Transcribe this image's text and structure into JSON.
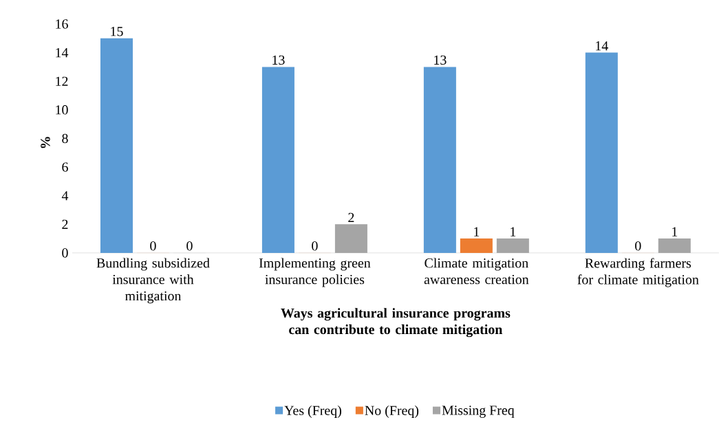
{
  "chart_data": {
    "type": "bar",
    "xlabel": "Ways agricultural insurance programs can contribute to climate mitigation",
    "ylabel": "%",
    "categories": [
      "Bundling subsidized insurance with mitigation",
      "Implementing green insurance policies",
      "Climate mitigation awareness creation",
      "Rewarding farmers for climate mitigation"
    ],
    "series": [
      {
        "name": "Yes (Freq)",
        "color": "#5b9bd5",
        "values": [
          15,
          13,
          13,
          14
        ]
      },
      {
        "name": "No (Freq)",
        "color": "#ed7d31",
        "values": [
          0,
          0,
          1,
          0
        ]
      },
      {
        "name": "Missing Freq",
        "color": "#a5a5a5",
        "values": [
          0,
          2,
          1,
          1
        ]
      }
    ],
    "ylim": [
      0,
      16
    ],
    "yticks": [
      0,
      2,
      4,
      6,
      8,
      10,
      12,
      14,
      16
    ],
    "grid": false,
    "legend": "bottom",
    "data_labels": true
  }
}
